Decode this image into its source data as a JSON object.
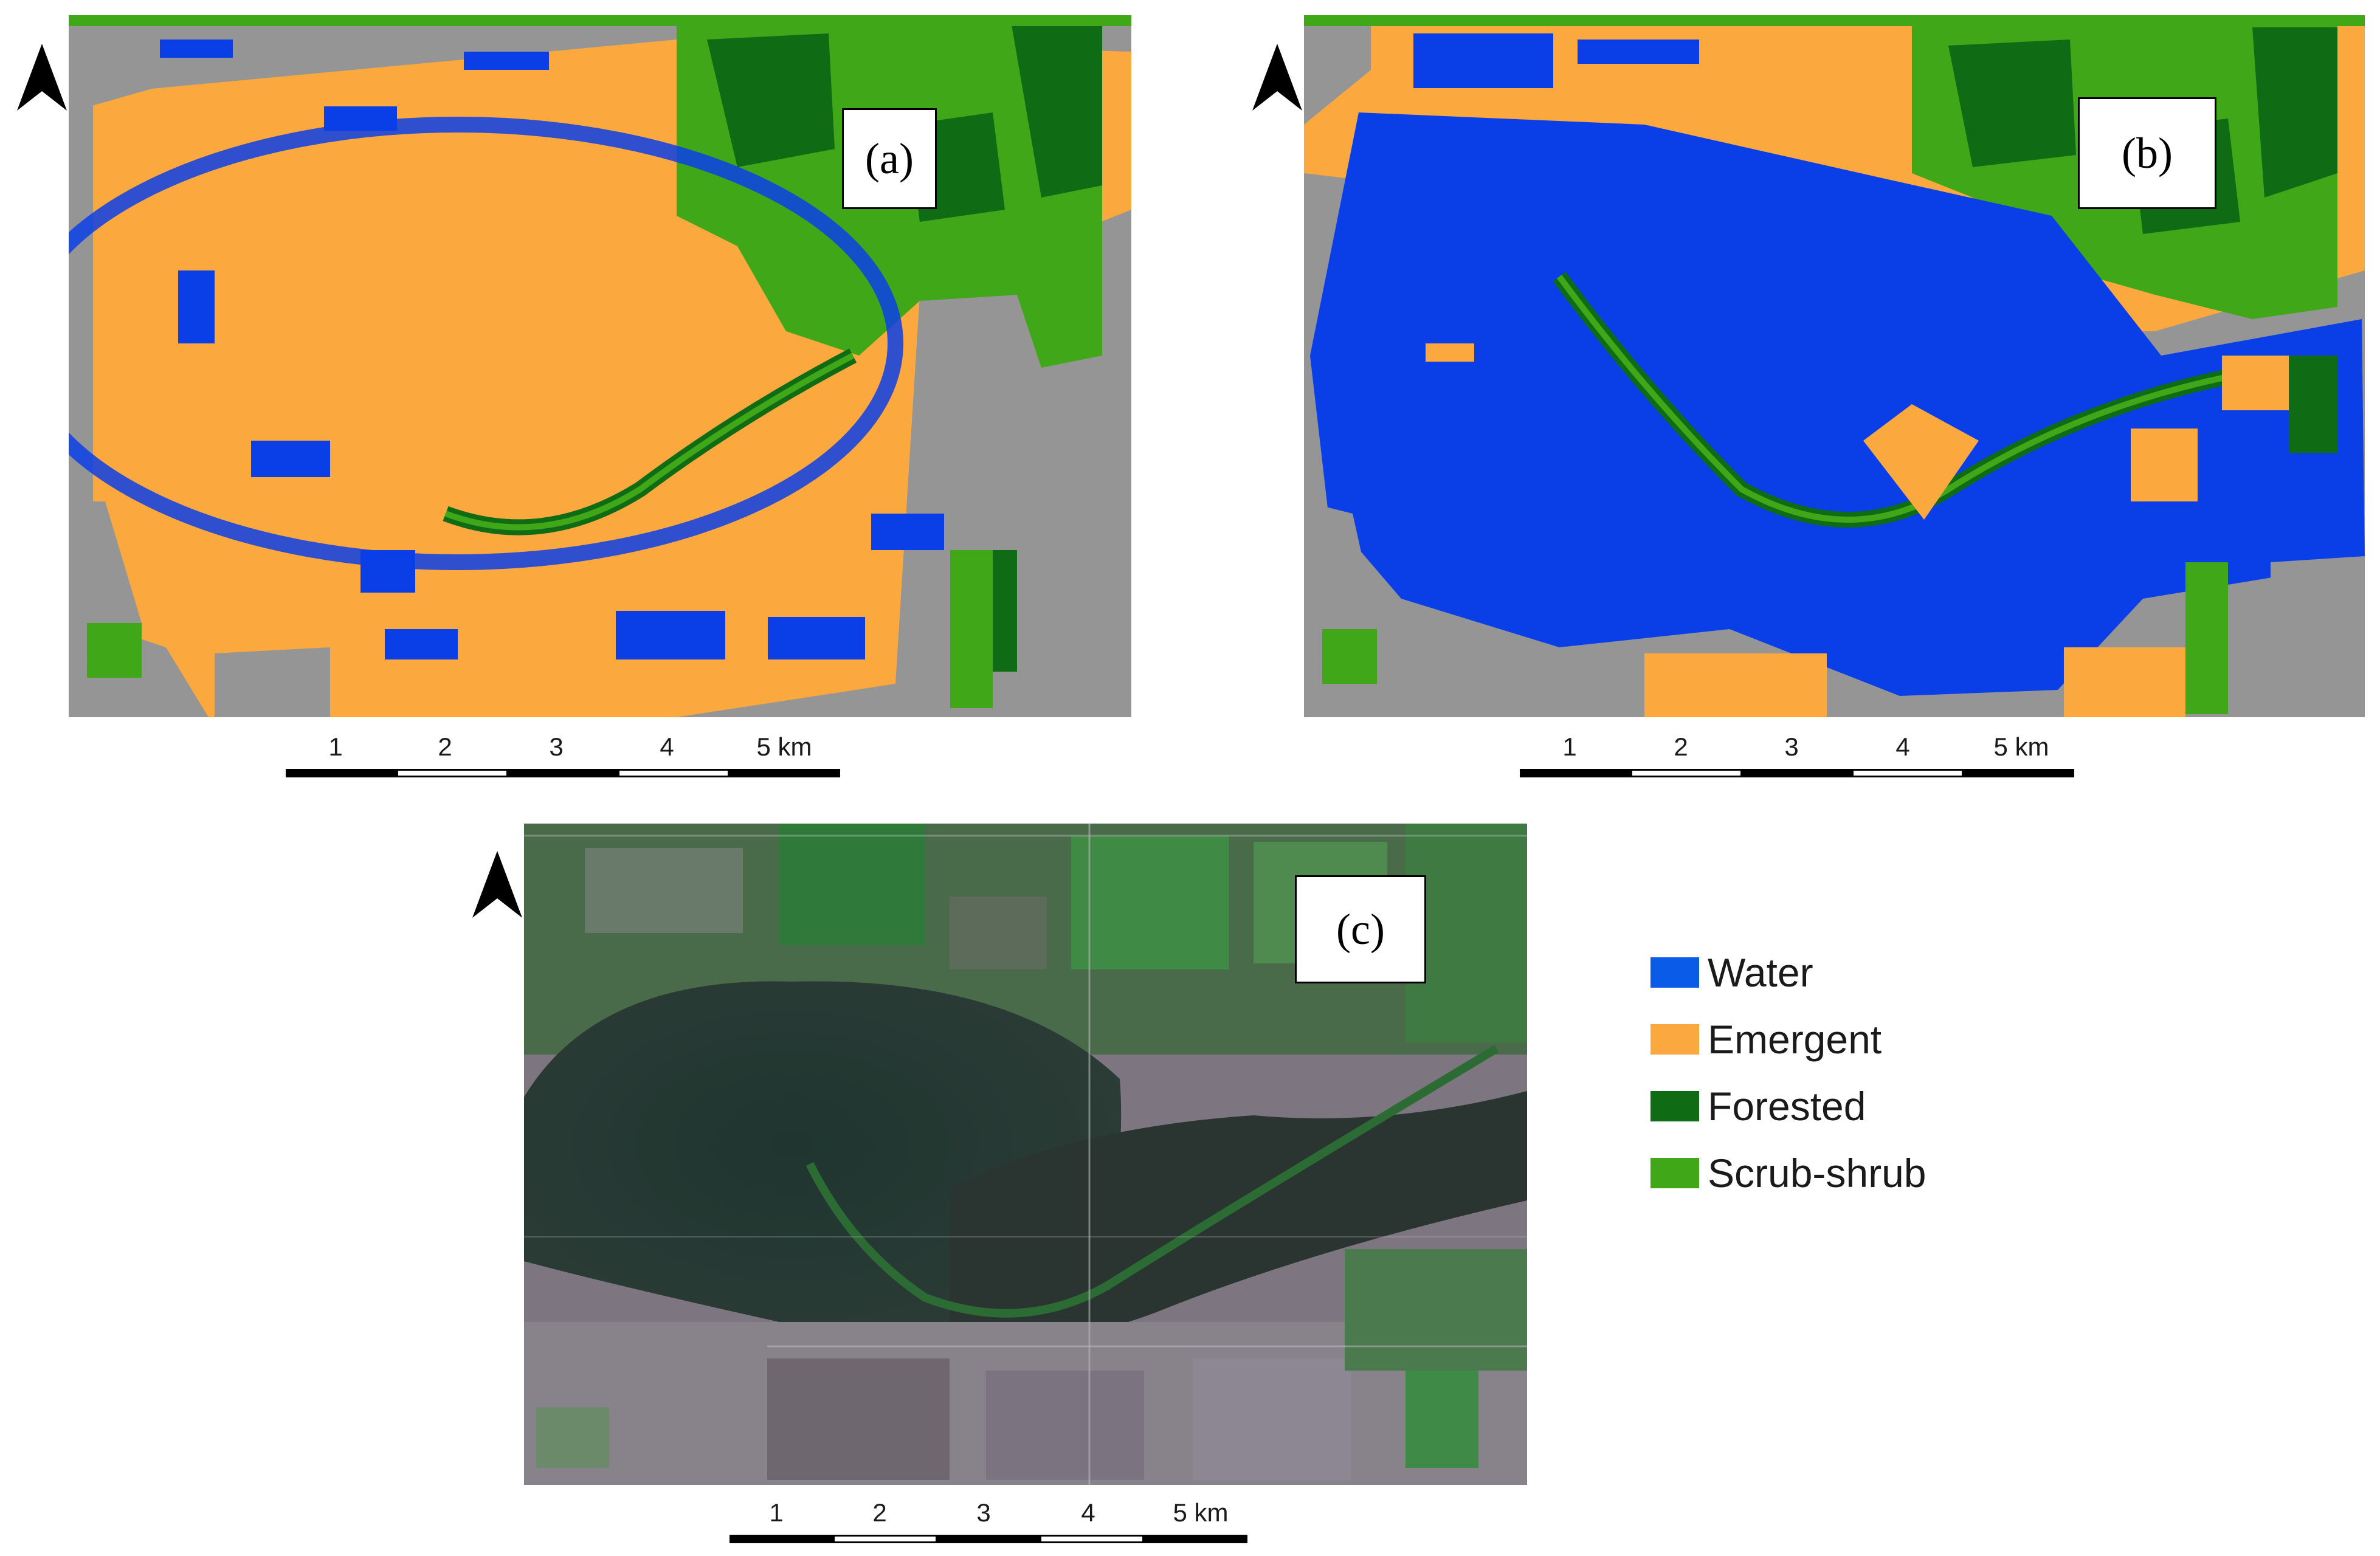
{
  "panels": [
    {
      "id": "a",
      "label": "(a)"
    },
    {
      "id": "b",
      "label": "(b)"
    },
    {
      "id": "c",
      "label": "(c)"
    }
  ],
  "scale_bar": {
    "ticks": [
      "1",
      "2",
      "3",
      "4",
      "5 km"
    ]
  },
  "legend": {
    "items": [
      {
        "label": "Water",
        "color": "#0a3fe8"
      },
      {
        "label": "Emergent",
        "color": "#fba83e"
      },
      {
        "label": "Forested",
        "color": "#0f6b14"
      },
      {
        "label": "Scrub-shrub",
        "color": "#3fa718"
      }
    ]
  },
  "colors": {
    "water": "#0a3fe8",
    "emergent": "#fba83e",
    "forested": "#0f6b14",
    "scrub_shrub": "#3fa718",
    "background_land": "#959595"
  },
  "icons": {
    "north_arrow": "north-arrow-icon"
  }
}
